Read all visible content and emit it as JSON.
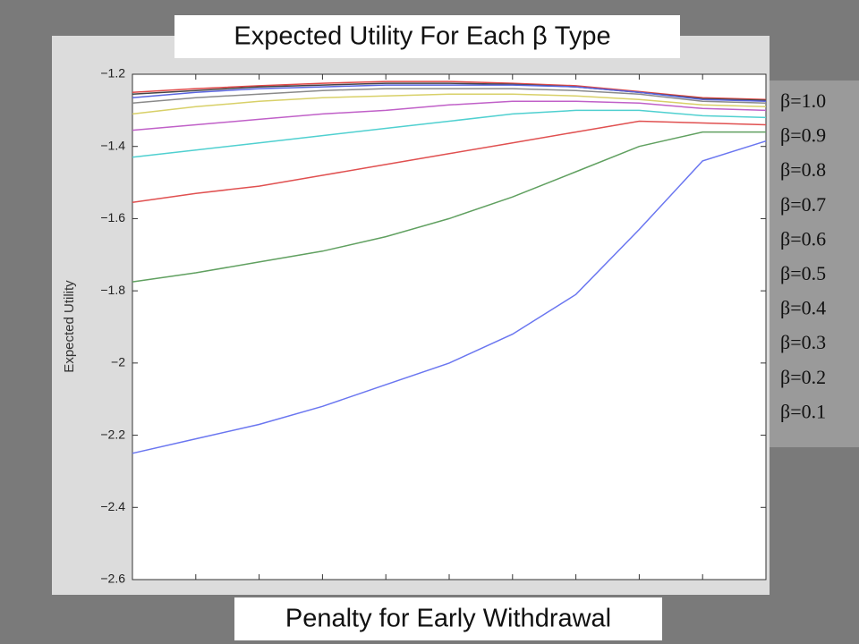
{
  "chart_data": {
    "type": "line",
    "title": "Expected Utility For Each β Type",
    "x_label": "Penalty for Early Withdrawal",
    "y_label": "Expected Utility",
    "categories": [
      null,
      null,
      null,
      null,
      null,
      null,
      null,
      null,
      null,
      null,
      null
    ],
    "ylim": [
      -2.6,
      -1.2
    ],
    "yticks": [
      {
        "value": -1.2,
        "label": "−1.2"
      },
      {
        "value": -1.4,
        "label": "−1.4"
      },
      {
        "value": -1.6,
        "label": "−1.6"
      },
      {
        "value": -1.8,
        "label": "−1.8"
      },
      {
        "value": -2,
        "label": "−2"
      },
      {
        "value": -2.2,
        "label": "−2.2"
      },
      {
        "value": -2.4,
        "label": "−2.4"
      },
      {
        "value": -2.6,
        "label": "−2.6"
      }
    ],
    "series": [
      {
        "name": "β=1.0",
        "color": "#e04848",
        "values": [
          -1.25,
          -1.24,
          -1.232,
          -1.225,
          -1.22,
          -1.22,
          -1.225,
          -1.232,
          -1.248,
          -1.265,
          -1.27
        ]
      },
      {
        "name": "β=0.9",
        "color": "#444444",
        "values": [
          -1.255,
          -1.245,
          -1.235,
          -1.23,
          -1.225,
          -1.225,
          -1.228,
          -1.235,
          -1.25,
          -1.268,
          -1.272
        ]
      },
      {
        "name": "β=0.8",
        "color": "#5a66e0",
        "values": [
          -1.265,
          -1.25,
          -1.24,
          -1.235,
          -1.23,
          -1.23,
          -1.23,
          -1.235,
          -1.25,
          -1.27,
          -1.275
        ]
      },
      {
        "name": "β=0.7",
        "color": "#8a8a8a",
        "values": [
          -1.28,
          -1.265,
          -1.255,
          -1.245,
          -1.24,
          -1.24,
          -1.24,
          -1.245,
          -1.255,
          -1.275,
          -1.28
        ]
      },
      {
        "name": "β=0.6",
        "color": "#d8d068",
        "values": [
          -1.31,
          -1.29,
          -1.275,
          -1.265,
          -1.26,
          -1.255,
          -1.255,
          -1.26,
          -1.27,
          -1.285,
          -1.29
        ]
      },
      {
        "name": "β=0.5",
        "color": "#c060c8",
        "values": [
          -1.355,
          -1.34,
          -1.325,
          -1.31,
          -1.3,
          -1.285,
          -1.275,
          -1.275,
          -1.28,
          -1.295,
          -1.3
        ]
      },
      {
        "name": "β=0.4",
        "color": "#50d0d0",
        "values": [
          -1.43,
          -1.41,
          -1.39,
          -1.37,
          -1.35,
          -1.33,
          -1.31,
          -1.3,
          -1.3,
          -1.315,
          -1.32
        ]
      },
      {
        "name": "β=0.3",
        "color": "#e05050",
        "values": [
          -1.555,
          -1.53,
          -1.51,
          -1.48,
          -1.45,
          -1.42,
          -1.39,
          -1.36,
          -1.33,
          -1.335,
          -1.34
        ]
      },
      {
        "name": "β=0.2",
        "color": "#60a060",
        "values": [
          -1.775,
          -1.75,
          -1.72,
          -1.69,
          -1.65,
          -1.6,
          -1.54,
          -1.47,
          -1.4,
          -1.36,
          -1.36
        ]
      },
      {
        "name": "β=0.1",
        "color": "#6a76f0",
        "values": [
          -2.25,
          -2.21,
          -2.17,
          -2.12,
          -2.06,
          -2.0,
          -1.92,
          -1.81,
          -1.63,
          -1.44,
          -1.385
        ]
      }
    ]
  }
}
